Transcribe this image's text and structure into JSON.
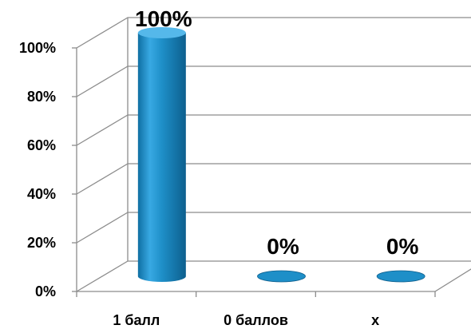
{
  "chart_data": {
    "type": "bar",
    "style": "3d-cylinder",
    "categories": [
      "1 балл",
      "0 баллов",
      "x"
    ],
    "values": [
      100,
      0,
      0
    ],
    "data_labels": [
      "100%",
      "0%",
      "0%"
    ],
    "y_ticks": [
      "0%",
      "20%",
      "40%",
      "60%",
      "80%",
      "100%"
    ],
    "ylim": [
      0,
      100
    ],
    "grid": true,
    "bar_color": "#1E8FC8",
    "title": "",
    "xlabel": "",
    "ylabel": ""
  }
}
